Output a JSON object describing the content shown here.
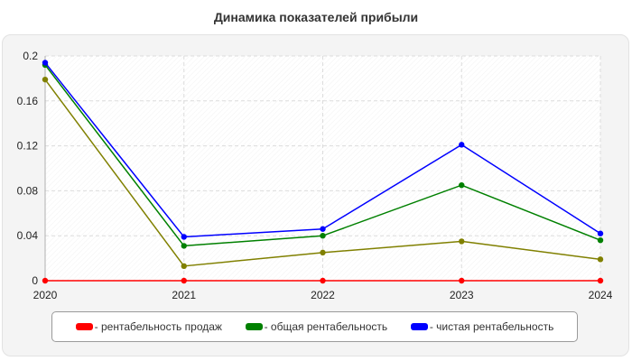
{
  "chart_data": {
    "type": "line",
    "title": "Динамика показателей прибыли",
    "xlabel": "",
    "ylabel": "",
    "x": [
      "2020",
      "2021",
      "2022",
      "2023",
      "2024"
    ],
    "ylim": [
      0,
      0.2
    ],
    "yticks": [
      0,
      0.04,
      0.08,
      0.12,
      0.16,
      0.2
    ],
    "ytick_labels": [
      "0",
      "0.04",
      "0.08",
      "0.12",
      "0.16",
      "0.2"
    ],
    "grid": true,
    "legend_position": "bottom",
    "series": [
      {
        "name": "- рентабельность продаж",
        "color": "#ff0000",
        "values": [
          0,
          0,
          0,
          0,
          0
        ]
      },
      {
        "name": "- общая рентабельность",
        "color": "#008000",
        "values": [
          0.192,
          0.031,
          0.04,
          0.085,
          0.036
        ]
      },
      {
        "name": "- чистая рентабельность",
        "color": "#0000ff",
        "values": [
          0.194,
          0.039,
          0.046,
          0.121,
          0.042
        ]
      },
      {
        "color": "#808000",
        "values": [
          0.179,
          0.013,
          0.025,
          0.035,
          0.019
        ]
      }
    ]
  }
}
